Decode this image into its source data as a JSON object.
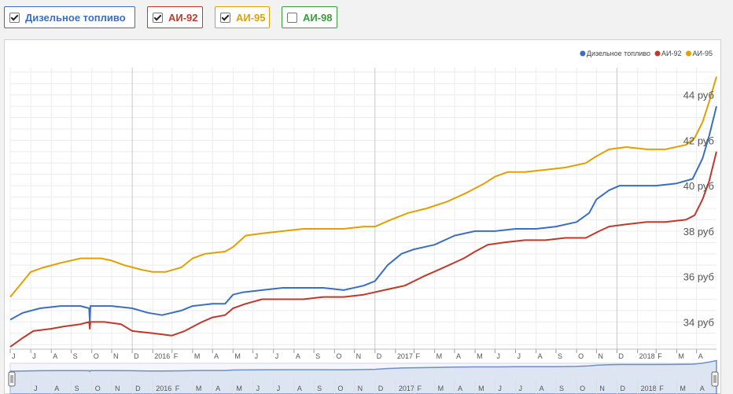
{
  "toggles": [
    {
      "label": "Дизельное топливо",
      "checked": true,
      "color": "#3a6fc0"
    },
    {
      "label": "АИ-92",
      "checked": true,
      "color": "#c0392b"
    },
    {
      "label": "АИ-95",
      "checked": true,
      "color": "#e0a000"
    },
    {
      "label": "АИ-98",
      "checked": false,
      "color": "#3a9b3a"
    }
  ],
  "chart_data": {
    "type": "line",
    "x_start": "2015-07-01",
    "x_end": "2018-05-31",
    "ylim": [
      32.8,
      45.2
    ],
    "y_ticks": [
      34,
      36,
      38,
      40,
      42,
      44
    ],
    "y_tick_labels": [
      "34 руб",
      "36 руб",
      "38 руб",
      "40 руб",
      "42 руб",
      "44 руб"
    ],
    "x_tick_labels": [
      "J",
      "J",
      "A",
      "S",
      "O",
      "N",
      "D",
      "2016",
      "F",
      "M",
      "A",
      "M",
      "J",
      "J",
      "A",
      "S",
      "O",
      "N",
      "D",
      "2017",
      "F",
      "M",
      "A",
      "M",
      "J",
      "J",
      "A",
      "S",
      "O",
      "N",
      "D",
      "2018",
      "F",
      "M",
      "A",
      "M"
    ],
    "legend_position": "top-right",
    "grid": true,
    "series": [
      {
        "name": "Дизельное топливо",
        "color": "#3a6fc0",
        "points": [
          [
            "2015-07-01",
            34.1
          ],
          [
            "2015-07-20",
            34.4
          ],
          [
            "2015-08-15",
            34.6
          ],
          [
            "2015-09-15",
            34.7
          ],
          [
            "2015-10-15",
            34.7
          ],
          [
            "2015-10-28",
            34.6
          ],
          [
            "2015-10-29",
            34.0
          ],
          [
            "2015-10-30",
            34.7
          ],
          [
            "2015-12-01",
            34.7
          ],
          [
            "2016-01-01",
            34.6
          ],
          [
            "2016-01-25",
            34.4
          ],
          [
            "2016-02-15",
            34.3
          ],
          [
            "2016-03-15",
            34.5
          ],
          [
            "2016-04-01",
            34.7
          ],
          [
            "2016-05-01",
            34.8
          ],
          [
            "2016-05-20",
            34.8
          ],
          [
            "2016-06-01",
            35.2
          ],
          [
            "2016-06-15",
            35.3
          ],
          [
            "2016-07-15",
            35.4
          ],
          [
            "2016-08-15",
            35.5
          ],
          [
            "2016-09-15",
            35.5
          ],
          [
            "2016-10-15",
            35.5
          ],
          [
            "2016-11-15",
            35.4
          ],
          [
            "2016-12-15",
            35.6
          ],
          [
            "2017-01-01",
            35.8
          ],
          [
            "2017-01-20",
            36.5
          ],
          [
            "2017-02-10",
            37.0
          ],
          [
            "2017-03-01",
            37.2
          ],
          [
            "2017-04-01",
            37.4
          ],
          [
            "2017-05-01",
            37.8
          ],
          [
            "2017-06-01",
            38.0
          ],
          [
            "2017-07-01",
            38.0
          ],
          [
            "2017-08-01",
            38.1
          ],
          [
            "2017-09-01",
            38.1
          ],
          [
            "2017-10-01",
            38.2
          ],
          [
            "2017-11-01",
            38.4
          ],
          [
            "2017-11-20",
            38.8
          ],
          [
            "2017-12-01",
            39.4
          ],
          [
            "2017-12-20",
            39.8
          ],
          [
            "2018-01-05",
            40.0
          ],
          [
            "2018-02-01",
            40.0
          ],
          [
            "2018-03-01",
            40.0
          ],
          [
            "2018-04-01",
            40.1
          ],
          [
            "2018-04-25",
            40.3
          ],
          [
            "2018-05-10",
            41.2
          ],
          [
            "2018-05-20",
            42.2
          ],
          [
            "2018-05-31",
            43.5
          ]
        ]
      },
      {
        "name": "АИ-92",
        "color": "#c0392b",
        "points": [
          [
            "2015-07-01",
            32.9
          ],
          [
            "2015-07-20",
            33.3
          ],
          [
            "2015-08-05",
            33.6
          ],
          [
            "2015-09-01",
            33.7
          ],
          [
            "2015-09-20",
            33.8
          ],
          [
            "2015-10-15",
            33.9
          ],
          [
            "2015-10-28",
            34.0
          ],
          [
            "2015-10-29",
            33.7
          ],
          [
            "2015-10-30",
            34.0
          ],
          [
            "2015-11-20",
            34.0
          ],
          [
            "2015-12-15",
            33.9
          ],
          [
            "2016-01-01",
            33.6
          ],
          [
            "2016-02-01",
            33.5
          ],
          [
            "2016-03-01",
            33.4
          ],
          [
            "2016-03-20",
            33.6
          ],
          [
            "2016-04-15",
            34.0
          ],
          [
            "2016-05-01",
            34.2
          ],
          [
            "2016-05-20",
            34.3
          ],
          [
            "2016-06-01",
            34.6
          ],
          [
            "2016-06-20",
            34.8
          ],
          [
            "2016-07-15",
            35.0
          ],
          [
            "2016-08-15",
            35.0
          ],
          [
            "2016-09-15",
            35.0
          ],
          [
            "2016-10-15",
            35.1
          ],
          [
            "2016-11-15",
            35.1
          ],
          [
            "2016-12-15",
            35.2
          ],
          [
            "2017-01-15",
            35.4
          ],
          [
            "2017-02-15",
            35.6
          ],
          [
            "2017-03-15",
            36.0
          ],
          [
            "2017-04-15",
            36.4
          ],
          [
            "2017-05-15",
            36.8
          ],
          [
            "2017-06-01",
            37.1
          ],
          [
            "2017-06-20",
            37.4
          ],
          [
            "2017-07-15",
            37.5
          ],
          [
            "2017-08-15",
            37.6
          ],
          [
            "2017-09-15",
            37.6
          ],
          [
            "2017-10-15",
            37.7
          ],
          [
            "2017-11-15",
            37.7
          ],
          [
            "2017-12-05",
            38.0
          ],
          [
            "2017-12-20",
            38.2
          ],
          [
            "2018-01-15",
            38.3
          ],
          [
            "2018-02-15",
            38.4
          ],
          [
            "2018-03-15",
            38.4
          ],
          [
            "2018-04-15",
            38.5
          ],
          [
            "2018-04-28",
            38.7
          ],
          [
            "2018-05-10",
            39.4
          ],
          [
            "2018-05-20",
            40.2
          ],
          [
            "2018-05-31",
            41.5
          ]
        ]
      },
      {
        "name": "АИ-95",
        "color": "#e0a000",
        "points": [
          [
            "2015-07-01",
            35.1
          ],
          [
            "2015-07-15",
            35.6
          ],
          [
            "2015-08-01",
            36.2
          ],
          [
            "2015-08-20",
            36.4
          ],
          [
            "2015-09-15",
            36.6
          ],
          [
            "2015-10-15",
            36.8
          ],
          [
            "2015-11-15",
            36.8
          ],
          [
            "2015-12-01",
            36.7
          ],
          [
            "2015-12-20",
            36.5
          ],
          [
            "2016-01-15",
            36.3
          ],
          [
            "2016-02-01",
            36.2
          ],
          [
            "2016-02-20",
            36.2
          ],
          [
            "2016-03-15",
            36.4
          ],
          [
            "2016-04-01",
            36.8
          ],
          [
            "2016-04-20",
            37.0
          ],
          [
            "2016-05-20",
            37.1
          ],
          [
            "2016-06-01",
            37.3
          ],
          [
            "2016-06-20",
            37.8
          ],
          [
            "2016-07-15",
            37.9
          ],
          [
            "2016-08-15",
            38.0
          ],
          [
            "2016-09-15",
            38.1
          ],
          [
            "2016-10-15",
            38.1
          ],
          [
            "2016-11-15",
            38.1
          ],
          [
            "2016-12-15",
            38.2
          ],
          [
            "2017-01-01",
            38.2
          ],
          [
            "2017-01-25",
            38.5
          ],
          [
            "2017-02-20",
            38.8
          ],
          [
            "2017-03-20",
            39.0
          ],
          [
            "2017-04-20",
            39.3
          ],
          [
            "2017-05-20",
            39.7
          ],
          [
            "2017-06-15",
            40.1
          ],
          [
            "2017-07-01",
            40.4
          ],
          [
            "2017-07-20",
            40.6
          ],
          [
            "2017-08-15",
            40.6
          ],
          [
            "2017-09-15",
            40.7
          ],
          [
            "2017-10-15",
            40.8
          ],
          [
            "2017-11-15",
            41.0
          ],
          [
            "2017-12-01",
            41.3
          ],
          [
            "2017-12-20",
            41.6
          ],
          [
            "2018-01-15",
            41.7
          ],
          [
            "2018-02-15",
            41.6
          ],
          [
            "2018-03-15",
            41.6
          ],
          [
            "2018-04-15",
            41.8
          ],
          [
            "2018-04-28",
            42.1
          ],
          [
            "2018-05-10",
            42.8
          ],
          [
            "2018-05-20",
            43.7
          ],
          [
            "2018-05-31",
            44.8
          ]
        ]
      }
    ]
  }
}
